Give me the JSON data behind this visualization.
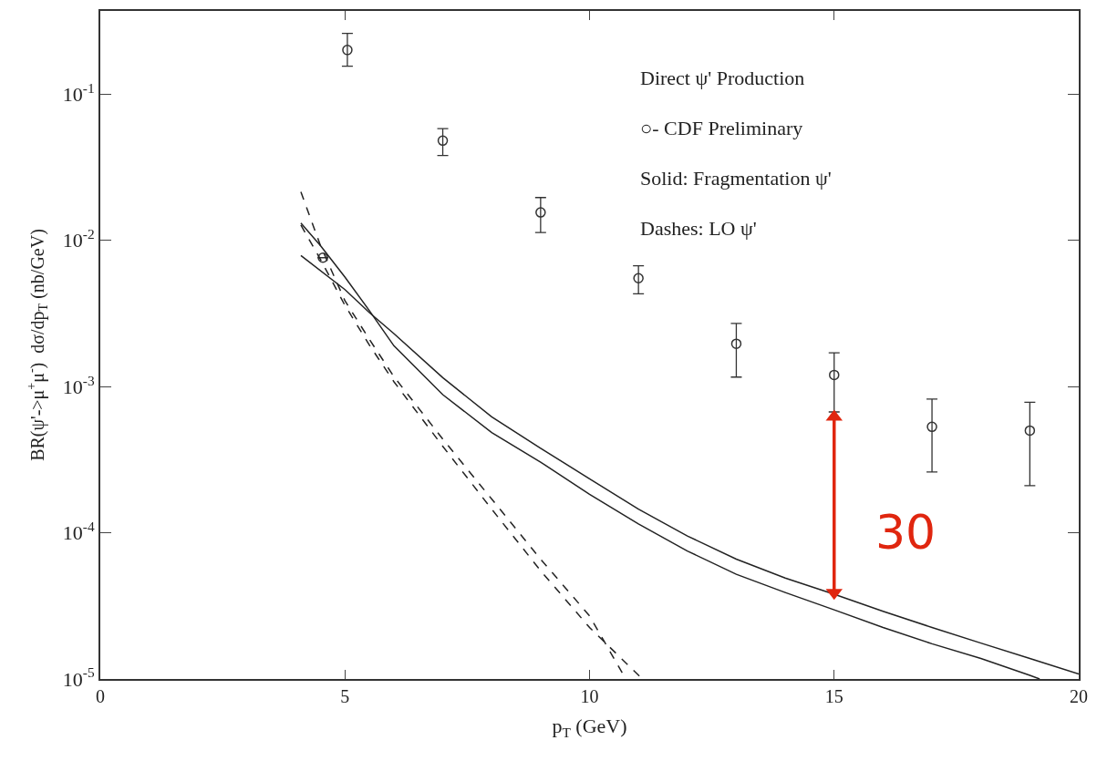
{
  "chart_data": {
    "type": "line",
    "xlabel": "p$_{T}$ (GeV)",
    "ylabel": "BR(ψ'->μ$^{+}$μ$^{-}$)  dσ/dp$_{T}$ (nb/GeV)",
    "log": "y",
    "xlim": [
      0,
      20
    ],
    "xticks": [
      0,
      5,
      10,
      15,
      20
    ],
    "ylim": [
      1e-05,
      0.37
    ],
    "yticks": [
      {
        "value": 0.1,
        "label": "10$^{-1}$"
      },
      {
        "value": 0.01,
        "label": "10$^{-2}$"
      },
      {
        "value": 0.001,
        "label": "10$^{-3}$"
      },
      {
        "value": 0.0001,
        "label": "10$^{-4}$"
      },
      {
        "value": 1e-05,
        "label": "10$^{-5}$"
      }
    ],
    "series": [
      {
        "type": "scatter",
        "marker": "circle",
        "color": "#333333",
        "x": [
          4.55,
          5.05,
          7,
          9,
          11,
          13,
          15,
          17,
          19
        ],
        "values": [
          0.0076,
          0.2,
          0.048,
          0.0155,
          0.0055,
          0.00196,
          0.0012,
          0.00053,
          0.0005
        ],
        "errors": [
          null,
          [
            0.155,
            0.26
          ],
          [
            0.038,
            0.058
          ],
          [
            0.0113,
            0.0196
          ],
          [
            0.0043,
            0.0067
          ],
          [
            0.00116,
            0.0027
          ],
          [
            0.00067,
            0.0017
          ],
          [
            0.00026,
            0.00082
          ],
          [
            0.00021,
            0.00078
          ]
        ]
      },
      {
        "line_style": "solid",
        "color": "#222222",
        "x": [
          4.1,
          5,
          5.5,
          6,
          7,
          8,
          9,
          10,
          11,
          12,
          13,
          14,
          15,
          16,
          17,
          18,
          19,
          20
        ],
        "values": [
          0.00787,
          0.0046,
          0.0032,
          0.0023,
          0.00115,
          0.00062,
          0.000378,
          0.000234,
          0.000145,
          9.5e-05,
          6.6e-05,
          4.9e-05,
          3.8e-05,
          2.9e-05,
          2.25e-05,
          1.76e-05,
          1.38e-05,
          1.08e-05
        ]
      },
      {
        "line_style": "solid",
        "color": "#222222",
        "x": [
          4.1,
          4.5,
          5,
          5.5,
          6,
          7,
          8,
          9,
          10,
          11,
          12,
          13,
          14,
          15,
          16,
          17,
          18,
          19,
          19.2
        ],
        "values": [
          0.0131,
          0.0092,
          0.0056,
          0.0033,
          0.0019,
          0.00088,
          0.000484,
          0.000304,
          0.000183,
          0.000115,
          7.5e-05,
          5.2e-05,
          3.9e-05,
          2.97e-05,
          2.25e-05,
          1.74e-05,
          1.38e-05,
          1.06e-05,
          1e-05
        ]
      },
      {
        "line_style": "dashed",
        "color": "#222222",
        "x": [
          4.1,
          4.5,
          5,
          5.5,
          6,
          7,
          8,
          9,
          10,
          10.74
        ],
        "values": [
          0.0214,
          0.0092,
          0.00386,
          0.0021,
          0.00117,
          0.000437,
          0.00017,
          6.6e-05,
          2.7e-05,
          1e-05
        ]
      },
      {
        "line_style": "dashed",
        "color": "#222222",
        "x": [
          4.1,
          4.5,
          5,
          5.5,
          6,
          7,
          8,
          9,
          10,
          11.08
        ],
        "values": [
          0.0127,
          0.0074,
          0.00359,
          0.00192,
          0.00108,
          0.00039,
          0.000145,
          5.5e-05,
          2.25e-05,
          1e-05
        ]
      },
      {
        "line_style": "solid",
        "marker": "triangle",
        "color": "#e0260f",
        "x": [
          15,
          15
        ],
        "values": [
          0.00062,
          3.9e-05
        ]
      }
    ],
    "annotations": [
      "Direct ψ' Production",
      "○- CDF Preliminary",
      "Solid: Fragmentation ψ'",
      "Dashes: LO ψ'",
      "30"
    ]
  }
}
